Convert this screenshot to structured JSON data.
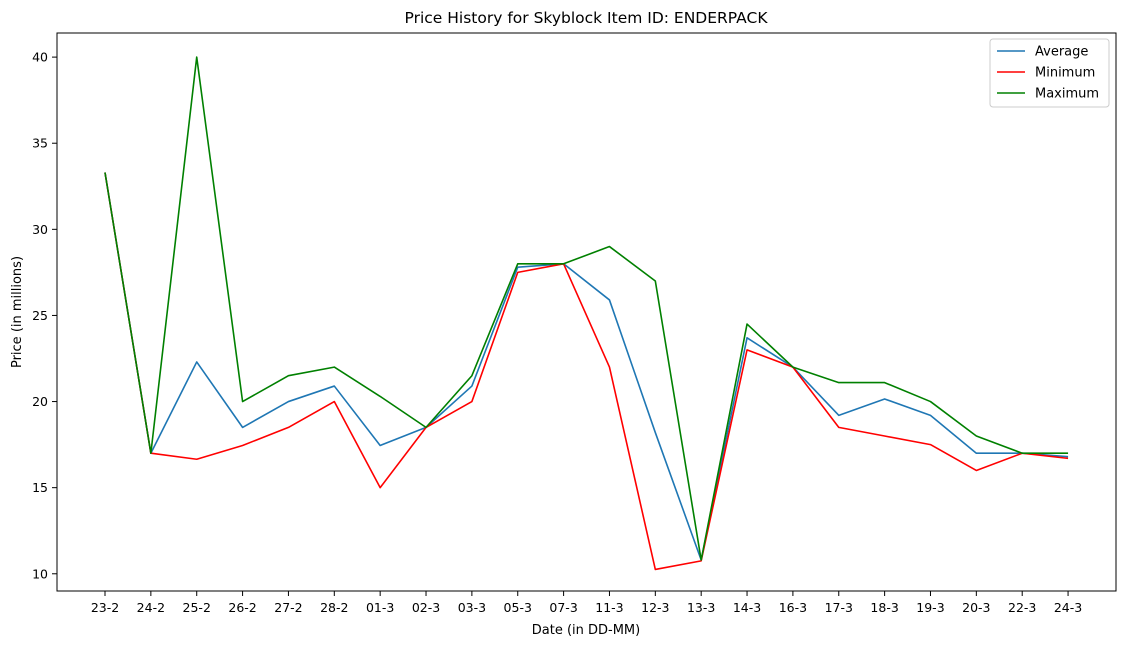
{
  "chart_data": {
    "type": "line",
    "title": "Price History for Skyblock Item ID: ENDERPACK",
    "xlabel": "Date (in DD-MM)",
    "ylabel": "Price (in millions)",
    "categories": [
      "23-2",
      "24-2",
      "25-2",
      "26-2",
      "27-2",
      "28-2",
      "01-3",
      "02-3",
      "03-3",
      "05-3",
      "07-3",
      "11-3",
      "12-3",
      "13-3",
      "14-3",
      "16-3",
      "17-3",
      "18-3",
      "19-3",
      "20-3",
      "22-3",
      "24-3"
    ],
    "ylim": [
      9,
      41.4
    ],
    "yticks": [
      10,
      15,
      20,
      25,
      30,
      35,
      40
    ],
    "grid": false,
    "legend_position": "top-right",
    "series": [
      {
        "name": "Average",
        "color": "#1f77b4",
        "values": [
          33.3,
          17.0,
          22.3,
          18.5,
          20.0,
          20.9,
          17.45,
          18.5,
          20.9,
          27.8,
          28.0,
          25.9,
          18.2,
          10.8,
          23.7,
          22.0,
          19.2,
          20.15,
          19.2,
          17.0,
          17.0,
          16.8
        ]
      },
      {
        "name": "Minimum",
        "color": "#ff0000",
        "values": [
          33.3,
          17.0,
          16.65,
          17.45,
          18.5,
          20.0,
          15.0,
          18.5,
          20.0,
          27.5,
          28.0,
          22.0,
          10.25,
          10.75,
          23.0,
          22.0,
          18.5,
          18.0,
          17.5,
          16.0,
          17.0,
          16.7
        ]
      },
      {
        "name": "Maximum",
        "color": "#008000",
        "values": [
          33.3,
          17.0,
          40.0,
          20.0,
          21.5,
          22.0,
          20.3,
          18.5,
          21.5,
          28.0,
          28.0,
          29.0,
          27.0,
          10.8,
          24.5,
          22.0,
          21.1,
          21.1,
          20.0,
          18.0,
          17.0,
          17.0
        ]
      }
    ]
  }
}
